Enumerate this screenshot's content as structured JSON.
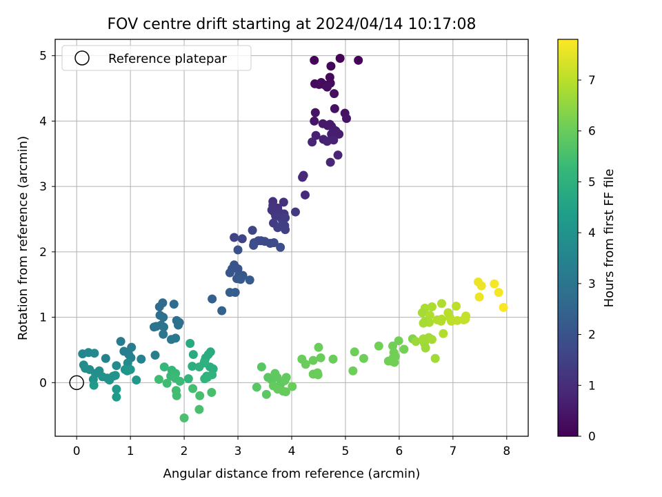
{
  "chart_data": {
    "type": "scatter",
    "title": "FOV centre drift starting at 2024/04/14 10:17:08",
    "xlabel": "Angular distance from reference (arcmin)",
    "ylabel": "Rotation from reference (arcmin)",
    "xlim": [
      -0.4,
      8.4
    ],
    "ylim": [
      -0.82,
      5.25
    ],
    "xticks": [
      "0",
      "1",
      "2",
      "3",
      "4",
      "5",
      "6",
      "7",
      "8"
    ],
    "yticks": [
      "0",
      "1",
      "2",
      "3",
      "4",
      "5"
    ],
    "grid": true,
    "legend": {
      "placement": "top-left",
      "entries": [
        "Reference platepar"
      ]
    },
    "reference_point": {
      "name": "Reference platepar",
      "x": 0,
      "y": 0
    },
    "colorbar": {
      "label": "Hours from first FF file",
      "range": [
        0,
        7.8
      ],
      "ticks": [
        "0",
        "1",
        "2",
        "3",
        "4",
        "5",
        "6",
        "7"
      ],
      "colormap": "viridis"
    },
    "series": [
      {
        "points": [
          [
            4.42,
            4.93
          ],
          [
            4.9,
            4.96
          ],
          [
            5.24,
            4.93
          ],
          [
            4.73,
            4.84
          ],
          [
            4.71,
            4.67
          ],
          [
            4.72,
            4.58
          ],
          [
            4.43,
            4.57
          ],
          [
            4.51,
            4.56
          ],
          [
            4.55,
            4.59
          ],
          [
            4.62,
            4.55
          ],
          [
            4.66,
            4.52
          ],
          [
            4.79,
            4.42
          ],
          [
            4.8,
            4.19
          ],
          [
            4.99,
            4.12
          ],
          [
            5.02,
            4.04
          ],
          [
            4.44,
            4.13
          ],
          [
            4.42,
            4.0
          ],
          [
            4.58,
            3.96
          ],
          [
            4.67,
            3.93
          ],
          [
            4.71,
            3.95
          ],
          [
            4.74,
            3.92
          ],
          [
            4.78,
            3.87
          ],
          [
            4.82,
            3.85
          ],
          [
            4.74,
            3.8
          ],
          [
            4.88,
            3.8
          ],
          [
            4.45,
            3.78
          ],
          [
            4.59,
            3.72
          ],
          [
            4.66,
            3.69
          ],
          [
            4.78,
            3.71
          ],
          [
            4.38,
            3.68
          ],
          [
            4.86,
            3.48
          ],
          [
            4.72,
            3.37
          ],
          [
            4.22,
            3.17
          ],
          [
            4.2,
            3.14
          ],
          [
            4.25,
            2.87
          ]
        ]
      },
      {
        "points": [
          [
            3.65,
            2.77
          ],
          [
            3.85,
            2.76
          ],
          [
            3.65,
            2.71
          ],
          [
            3.74,
            2.67
          ],
          [
            3.63,
            2.64
          ],
          [
            3.67,
            2.61
          ],
          [
            3.77,
            2.6
          ],
          [
            3.86,
            2.58
          ],
          [
            4.07,
            2.61
          ],
          [
            3.7,
            2.55
          ],
          [
            3.8,
            2.52
          ],
          [
            3.88,
            2.52
          ],
          [
            3.66,
            2.44
          ],
          [
            3.83,
            2.44
          ],
          [
            3.87,
            2.4
          ],
          [
            3.74,
            2.37
          ],
          [
            3.88,
            2.34
          ],
          [
            2.93,
            2.22
          ],
          [
            3.08,
            2.2
          ],
          [
            3.27,
            2.33
          ],
          [
            3.43,
            2.17
          ],
          [
            3.38,
            2.17
          ],
          [
            3.3,
            2.14
          ],
          [
            3.5,
            2.16
          ],
          [
            3.6,
            2.13
          ],
          [
            3.67,
            2.14
          ],
          [
            3.29,
            2.1
          ],
          [
            3.79,
            2.07
          ],
          [
            3.0,
            2.03
          ],
          [
            2.93,
            1.8
          ],
          [
            2.89,
            1.74
          ],
          [
            3.0,
            1.74
          ],
          [
            2.85,
            1.68
          ],
          [
            3.02,
            1.65
          ],
          [
            3.09,
            1.64
          ],
          [
            2.98,
            1.59
          ],
          [
            3.05,
            1.58
          ],
          [
            3.22,
            1.57
          ],
          [
            2.95,
            1.38
          ],
          [
            2.85,
            1.38
          ],
          [
            2.52,
            1.28
          ],
          [
            2.7,
            1.1
          ]
        ]
      },
      {
        "points": [
          [
            1.6,
            1.22
          ],
          [
            1.54,
            1.16
          ],
          [
            1.81,
            1.2
          ],
          [
            1.55,
            1.03
          ],
          [
            1.61,
            1.0
          ],
          [
            1.86,
            0.95
          ],
          [
            1.91,
            0.92
          ],
          [
            1.89,
            0.88
          ],
          [
            1.57,
            0.88
          ],
          [
            1.48,
            0.86
          ],
          [
            1.44,
            0.85
          ],
          [
            1.62,
            0.85
          ],
          [
            1.61,
            0.74
          ],
          [
            1.76,
            0.66
          ],
          [
            1.84,
            0.68
          ],
          [
            0.82,
            0.63
          ],
          [
            1.02,
            0.54
          ],
          [
            0.88,
            0.48
          ],
          [
            1.46,
            0.42
          ],
          [
            0.97,
            0.43
          ],
          [
            1.01,
            0.38
          ],
          [
            1.2,
            0.36
          ],
          [
            0.54,
            0.37
          ],
          [
            0.11,
            0.44
          ],
          [
            0.22,
            0.46
          ],
          [
            0.33,
            0.45
          ],
          [
            0.74,
            0.26
          ],
          [
            0.95,
            0.3
          ],
          [
            0.13,
            0.27
          ],
          [
            0.24,
            0.2
          ],
          [
            0.16,
            0.22
          ],
          [
            0.42,
            0.18
          ],
          [
            0.35,
            0.14
          ],
          [
            0.31,
            0.05
          ],
          [
            0.57,
            0.07
          ],
          [
            0.68,
            0.1
          ],
          [
            0.72,
            0.11
          ],
          [
            0.48,
            0.09
          ],
          [
            0.61,
            0.04
          ],
          [
            0.9,
            0.2
          ],
          [
            0.94,
            0.18
          ],
          [
            1.0,
            0.2
          ],
          [
            1.11,
            0.04
          ],
          [
            0.32,
            -0.04
          ],
          [
            0.74,
            -0.1
          ],
          [
            0.74,
            -0.22
          ]
        ]
      },
      {
        "points": [
          [
            2.11,
            0.6
          ],
          [
            2.17,
            0.43
          ],
          [
            2.49,
            0.47
          ],
          [
            2.45,
            0.43
          ],
          [
            2.4,
            0.38
          ],
          [
            2.38,
            0.33
          ],
          [
            2.48,
            0.24
          ],
          [
            2.54,
            0.21
          ],
          [
            2.15,
            0.25
          ],
          [
            2.28,
            0.24
          ],
          [
            2.37,
            0.3
          ],
          [
            2.42,
            0.1
          ],
          [
            2.52,
            0.12
          ],
          [
            2.43,
            0.08
          ],
          [
            2.38,
            0.06
          ],
          [
            2.08,
            0.06
          ],
          [
            1.63,
            0.24
          ],
          [
            1.77,
            0.19
          ],
          [
            1.84,
            0.14
          ],
          [
            1.75,
            0.1
          ],
          [
            1.83,
            0.07
          ],
          [
            1.92,
            0.02
          ],
          [
            1.53,
            0.05
          ],
          [
            1.68,
            -0.01
          ],
          [
            1.85,
            -0.12
          ],
          [
            1.86,
            -0.2
          ],
          [
            2.16,
            -0.09
          ],
          [
            2.29,
            -0.2
          ],
          [
            2.51,
            -0.15
          ],
          [
            2.28,
            -0.41
          ],
          [
            2.0,
            -0.54
          ],
          [
            3.44,
            0.24
          ],
          [
            3.56,
            0.08
          ],
          [
            3.63,
            0.04
          ],
          [
            3.69,
            0.14
          ],
          [
            3.73,
            0.08
          ],
          [
            3.8,
            -0.01
          ],
          [
            3.9,
            0.08
          ],
          [
            3.87,
            0.03
          ],
          [
            3.66,
            -0.05
          ],
          [
            3.74,
            -0.1
          ],
          [
            3.84,
            -0.13
          ],
          [
            3.89,
            -0.14
          ],
          [
            4.01,
            -0.06
          ],
          [
            3.35,
            -0.07
          ],
          [
            3.53,
            -0.18
          ]
        ]
      },
      {
        "points": [
          [
            4.5,
            0.54
          ],
          [
            4.54,
            0.38
          ],
          [
            4.77,
            0.36
          ],
          [
            4.19,
            0.36
          ],
          [
            4.26,
            0.28
          ],
          [
            4.4,
            0.34
          ],
          [
            4.4,
            0.13
          ],
          [
            4.48,
            0.15
          ],
          [
            4.49,
            0.12
          ],
          [
            5.17,
            0.47
          ],
          [
            5.34,
            0.37
          ],
          [
            5.14,
            0.18
          ],
          [
            5.62,
            0.56
          ],
          [
            5.88,
            0.56
          ],
          [
            5.99,
            0.64
          ],
          [
            5.9,
            0.46
          ],
          [
            6.09,
            0.51
          ],
          [
            5.93,
            0.4
          ],
          [
            5.89,
            0.38
          ],
          [
            5.85,
            0.33
          ],
          [
            5.91,
            0.31
          ],
          [
            5.8,
            0.33
          ],
          [
            6.25,
            0.67
          ]
        ]
      },
      {
        "points": [
          [
            6.48,
            1.14
          ],
          [
            6.61,
            1.16
          ],
          [
            6.79,
            1.21
          ],
          [
            6.43,
            1.07
          ],
          [
            6.57,
            1.03
          ],
          [
            6.71,
            0.96
          ],
          [
            6.91,
            1.07
          ],
          [
            6.94,
            1.0
          ],
          [
            6.48,
            0.94
          ],
          [
            6.56,
            0.92
          ],
          [
            6.45,
            0.91
          ],
          [
            6.79,
            0.97
          ],
          [
            6.78,
            0.94
          ],
          [
            6.97,
            0.94
          ],
          [
            7.06,
            1.17
          ],
          [
            7.08,
            0.95
          ],
          [
            6.31,
            0.63
          ],
          [
            6.45,
            0.67
          ],
          [
            6.55,
            0.69
          ],
          [
            6.61,
            0.66
          ],
          [
            6.47,
            0.6
          ],
          [
            6.49,
            0.53
          ],
          [
            6.82,
            0.75
          ],
          [
            6.67,
            0.37
          ],
          [
            7.23,
            0.97
          ],
          [
            7.24,
            1.02
          ],
          [
            7.2,
            0.96
          ]
        ]
      },
      {
        "points": [
          [
            7.47,
            1.54
          ],
          [
            7.53,
            1.48
          ],
          [
            7.77,
            1.51
          ],
          [
            7.85,
            1.38
          ],
          [
            7.49,
            1.31
          ],
          [
            7.94,
            1.15
          ]
        ]
      }
    ],
    "series_hours": [
      [
        0.05,
        0.05,
        0.05,
        0.1,
        0.15,
        0.2,
        0.2,
        0.2,
        0.25,
        0.25,
        0.3,
        0.3,
        0.35,
        0.35,
        0.4,
        0.4,
        0.45,
        0.5,
        0.5,
        0.55,
        0.55,
        0.6,
        0.6,
        0.65,
        0.65,
        0.7,
        0.7,
        0.75,
        0.75,
        0.8,
        0.8,
        0.85,
        0.9,
        0.95,
        1.0
      ],
      [
        1.1,
        1.1,
        1.15,
        1.15,
        1.2,
        1.2,
        1.25,
        1.25,
        1.3,
        1.3,
        1.35,
        1.4,
        1.4,
        1.45,
        1.45,
        1.5,
        1.5,
        1.6,
        1.6,
        1.65,
        1.7,
        1.75,
        1.75,
        1.8,
        1.8,
        1.85,
        1.85,
        1.9,
        1.95,
        2.0,
        2.05,
        2.05,
        2.1,
        2.1,
        2.15,
        2.15,
        2.2,
        2.25,
        2.3,
        2.35,
        2.4,
        2.45
      ],
      [
        2.7,
        2.75,
        2.75,
        2.8,
        2.85,
        2.85,
        2.9,
        2.9,
        2.95,
        2.95,
        3.0,
        3.0,
        3.05,
        3.1,
        3.1,
        3.25,
        3.25,
        3.3,
        3.35,
        3.35,
        3.4,
        3.45,
        3.5,
        3.55,
        3.6,
        3.65,
        3.7,
        3.75,
        3.75,
        3.8,
        3.8,
        3.85,
        3.85,
        3.9,
        3.9,
        3.95,
        3.95,
        4.0,
        4.0,
        4.05,
        4.05,
        4.1,
        4.15,
        4.2,
        4.2,
        4.25
      ],
      [
        4.7,
        4.75,
        4.75,
        4.8,
        4.8,
        4.85,
        4.85,
        4.9,
        4.9,
        4.95,
        4.95,
        5.0,
        5.0,
        5.05,
        5.05,
        5.1,
        5.2,
        5.2,
        5.25,
        5.25,
        5.3,
        5.3,
        5.35,
        5.35,
        5.4,
        5.4,
        5.45,
        5.45,
        5.5,
        5.5,
        5.55,
        5.75,
        5.8,
        5.8,
        5.85,
        5.85,
        5.85,
        5.9,
        5.9,
        5.9,
        5.95,
        5.95,
        5.95,
        6.0,
        5.75,
        5.8
      ],
      [
        6.0,
        6.0,
        6.0,
        6.0,
        6.0,
        6.0,
        6.0,
        6.0,
        6.0,
        6.05,
        6.05,
        6.05,
        6.1,
        6.1,
        6.1,
        6.1,
        6.15,
        6.1,
        6.1,
        6.1,
        6.1,
        6.1,
        6.3
      ],
      [
        6.8,
        6.8,
        6.85,
        6.75,
        6.85,
        6.9,
        6.95,
        6.95,
        6.75,
        6.8,
        6.75,
        6.9,
        6.9,
        7.0,
        7.0,
        7.05,
        6.6,
        6.7,
        6.7,
        6.75,
        6.7,
        6.65,
        6.9,
        6.7,
        7.1,
        7.1,
        7.1
      ],
      [
        7.6,
        7.6,
        7.7,
        7.7,
        7.6,
        7.75
      ]
    ]
  }
}
